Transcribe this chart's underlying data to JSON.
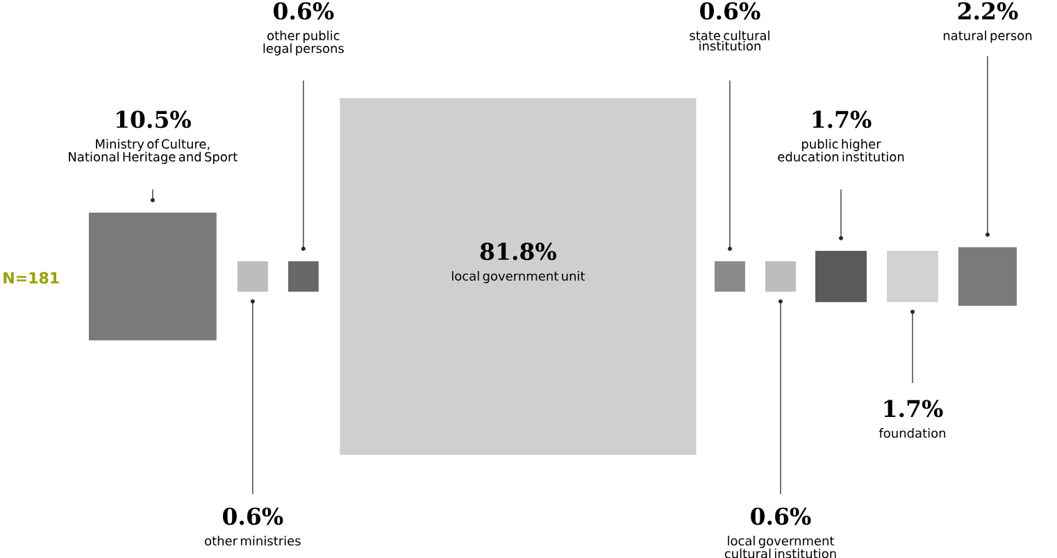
{
  "chart_data": {
    "type": "other",
    "categories": [
      "Ministry of Culture, National Heritage and Sport",
      "other ministries",
      "other public legal persons",
      "local government unit",
      "state cultural institution",
      "local government cultural institution",
      "public higher education institution",
      "foundation",
      "natural person"
    ],
    "values": [
      10.5,
      0.6,
      0.6,
      81.8,
      0.6,
      0.6,
      1.7,
      1.7,
      2.2
    ],
    "value_labels": [
      "10.5%",
      "0.6%",
      "0.6%",
      "81.8%",
      "0.6%",
      "0.6%",
      "1.7%",
      "1.7%",
      "2.2%"
    ],
    "colors": [
      "#7a7a7a",
      "#bdbdbd",
      "#686868",
      "#cfcfcf",
      "#8a8a8a",
      "#bdbdbd",
      "#5a5a5a",
      "#d2d2d2",
      "#7a7a7a"
    ],
    "annotations": [
      "N=181"
    ]
  }
}
